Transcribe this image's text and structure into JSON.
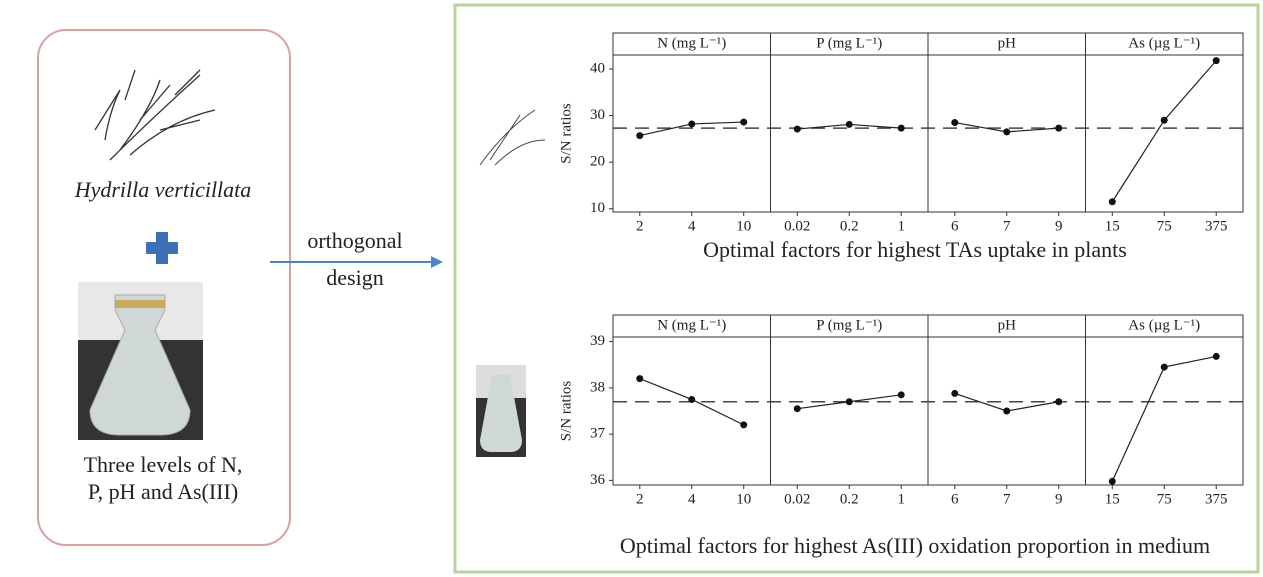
{
  "left_panel": {
    "species": "Hydrilla verticillata",
    "description": [
      "Three levels of N,",
      "P, pH and As(III)"
    ]
  },
  "arrow_label": [
    "orthogonal",
    "design"
  ],
  "chart_data": [
    {
      "type": "line",
      "title": "Optimal factors for highest TAs uptake in plants",
      "ylabel": "S/N ratios",
      "ylim": [
        9.3,
        43
      ],
      "yticks": [
        10,
        20,
        30,
        40
      ],
      "mean_line": 27.3,
      "panels": [
        {
          "title": "N (mg L⁻¹)",
          "categories": [
            "2",
            "4",
            "10"
          ],
          "values": [
            25.7,
            28.2,
            28.6
          ]
        },
        {
          "title": "P (mg L⁻¹)",
          "categories": [
            "0.02",
            "0.2",
            "1"
          ],
          "values": [
            27.1,
            28.1,
            27.3
          ]
        },
        {
          "title": "pH",
          "categories": [
            "6",
            "7",
            "9"
          ],
          "values": [
            28.5,
            26.5,
            27.3
          ]
        },
        {
          "title": "As (µg L⁻¹)",
          "categories": [
            "15",
            "75",
            "375"
          ],
          "values": [
            11.5,
            29,
            41.8
          ]
        }
      ]
    },
    {
      "type": "line",
      "title": "Optimal factors for highest As(III) oxidation proportion in medium",
      "ylabel": "S/N ratios",
      "ylim": [
        35.9,
        39.1
      ],
      "yticks": [
        36,
        37,
        38,
        39
      ],
      "mean_line": 37.7,
      "panels": [
        {
          "title": "N (mg L⁻¹)",
          "categories": [
            "2",
            "4",
            "10"
          ],
          "values": [
            38.2,
            37.75,
            37.2
          ]
        },
        {
          "title": "P (mg L⁻¹)",
          "categories": [
            "0.02",
            "0.2",
            "1"
          ],
          "values": [
            37.55,
            37.7,
            37.85
          ]
        },
        {
          "title": "pH",
          "categories": [
            "6",
            "7",
            "9"
          ],
          "values": [
            37.88,
            37.5,
            37.7
          ]
        },
        {
          "title": "As (µg L⁻¹)",
          "categories": [
            "15",
            "75",
            "375"
          ],
          "values": [
            35.98,
            38.45,
            38.68
          ]
        }
      ]
    }
  ]
}
